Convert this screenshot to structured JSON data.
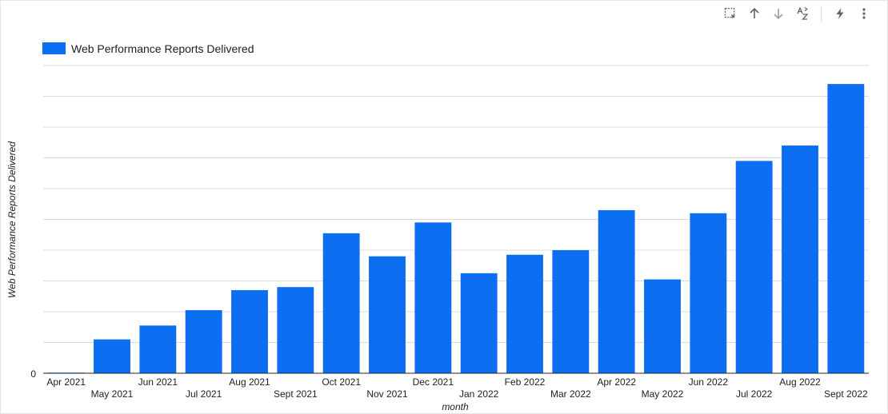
{
  "toolbar": {
    "icons": [
      "select-area-icon",
      "sort-ascending-icon",
      "sort-descending-icon",
      "sort-az-icon",
      "lightning-icon",
      "more-options-icon"
    ]
  },
  "colors": {
    "bar": "#0c6ef0",
    "grid": "#dadce0",
    "axis": "#202124"
  },
  "chart_data": {
    "type": "bar",
    "legend": {
      "label": "Web Performance Reports Delivered",
      "position": "top-left"
    },
    "xlabel": "month",
    "ylabel": "Web Performance Reports Delivered",
    "y_tick_labels": [
      "0"
    ],
    "grid": true,
    "ylim": [
      0,
      100
    ],
    "categories": [
      "Apr 2021",
      "May 2021",
      "Jun 2021",
      "Jul 2021",
      "Aug 2021",
      "Sept 2021",
      "Oct 2021",
      "Nov 2021",
      "Dec 2021",
      "Jan 2022",
      "Feb 2022",
      "Mar 2022",
      "Apr 2022",
      "May 2022",
      "Jun 2022",
      "Jul 2022",
      "Aug 2022",
      "Sept 2022"
    ],
    "series": [
      {
        "name": "Web Performance Reports Delivered",
        "values": [
          0.2,
          11,
          15.5,
          20.5,
          27,
          28,
          45.5,
          38,
          49,
          32.5,
          38.5,
          40,
          53,
          30.5,
          52,
          69,
          74,
          94
        ]
      }
    ]
  }
}
